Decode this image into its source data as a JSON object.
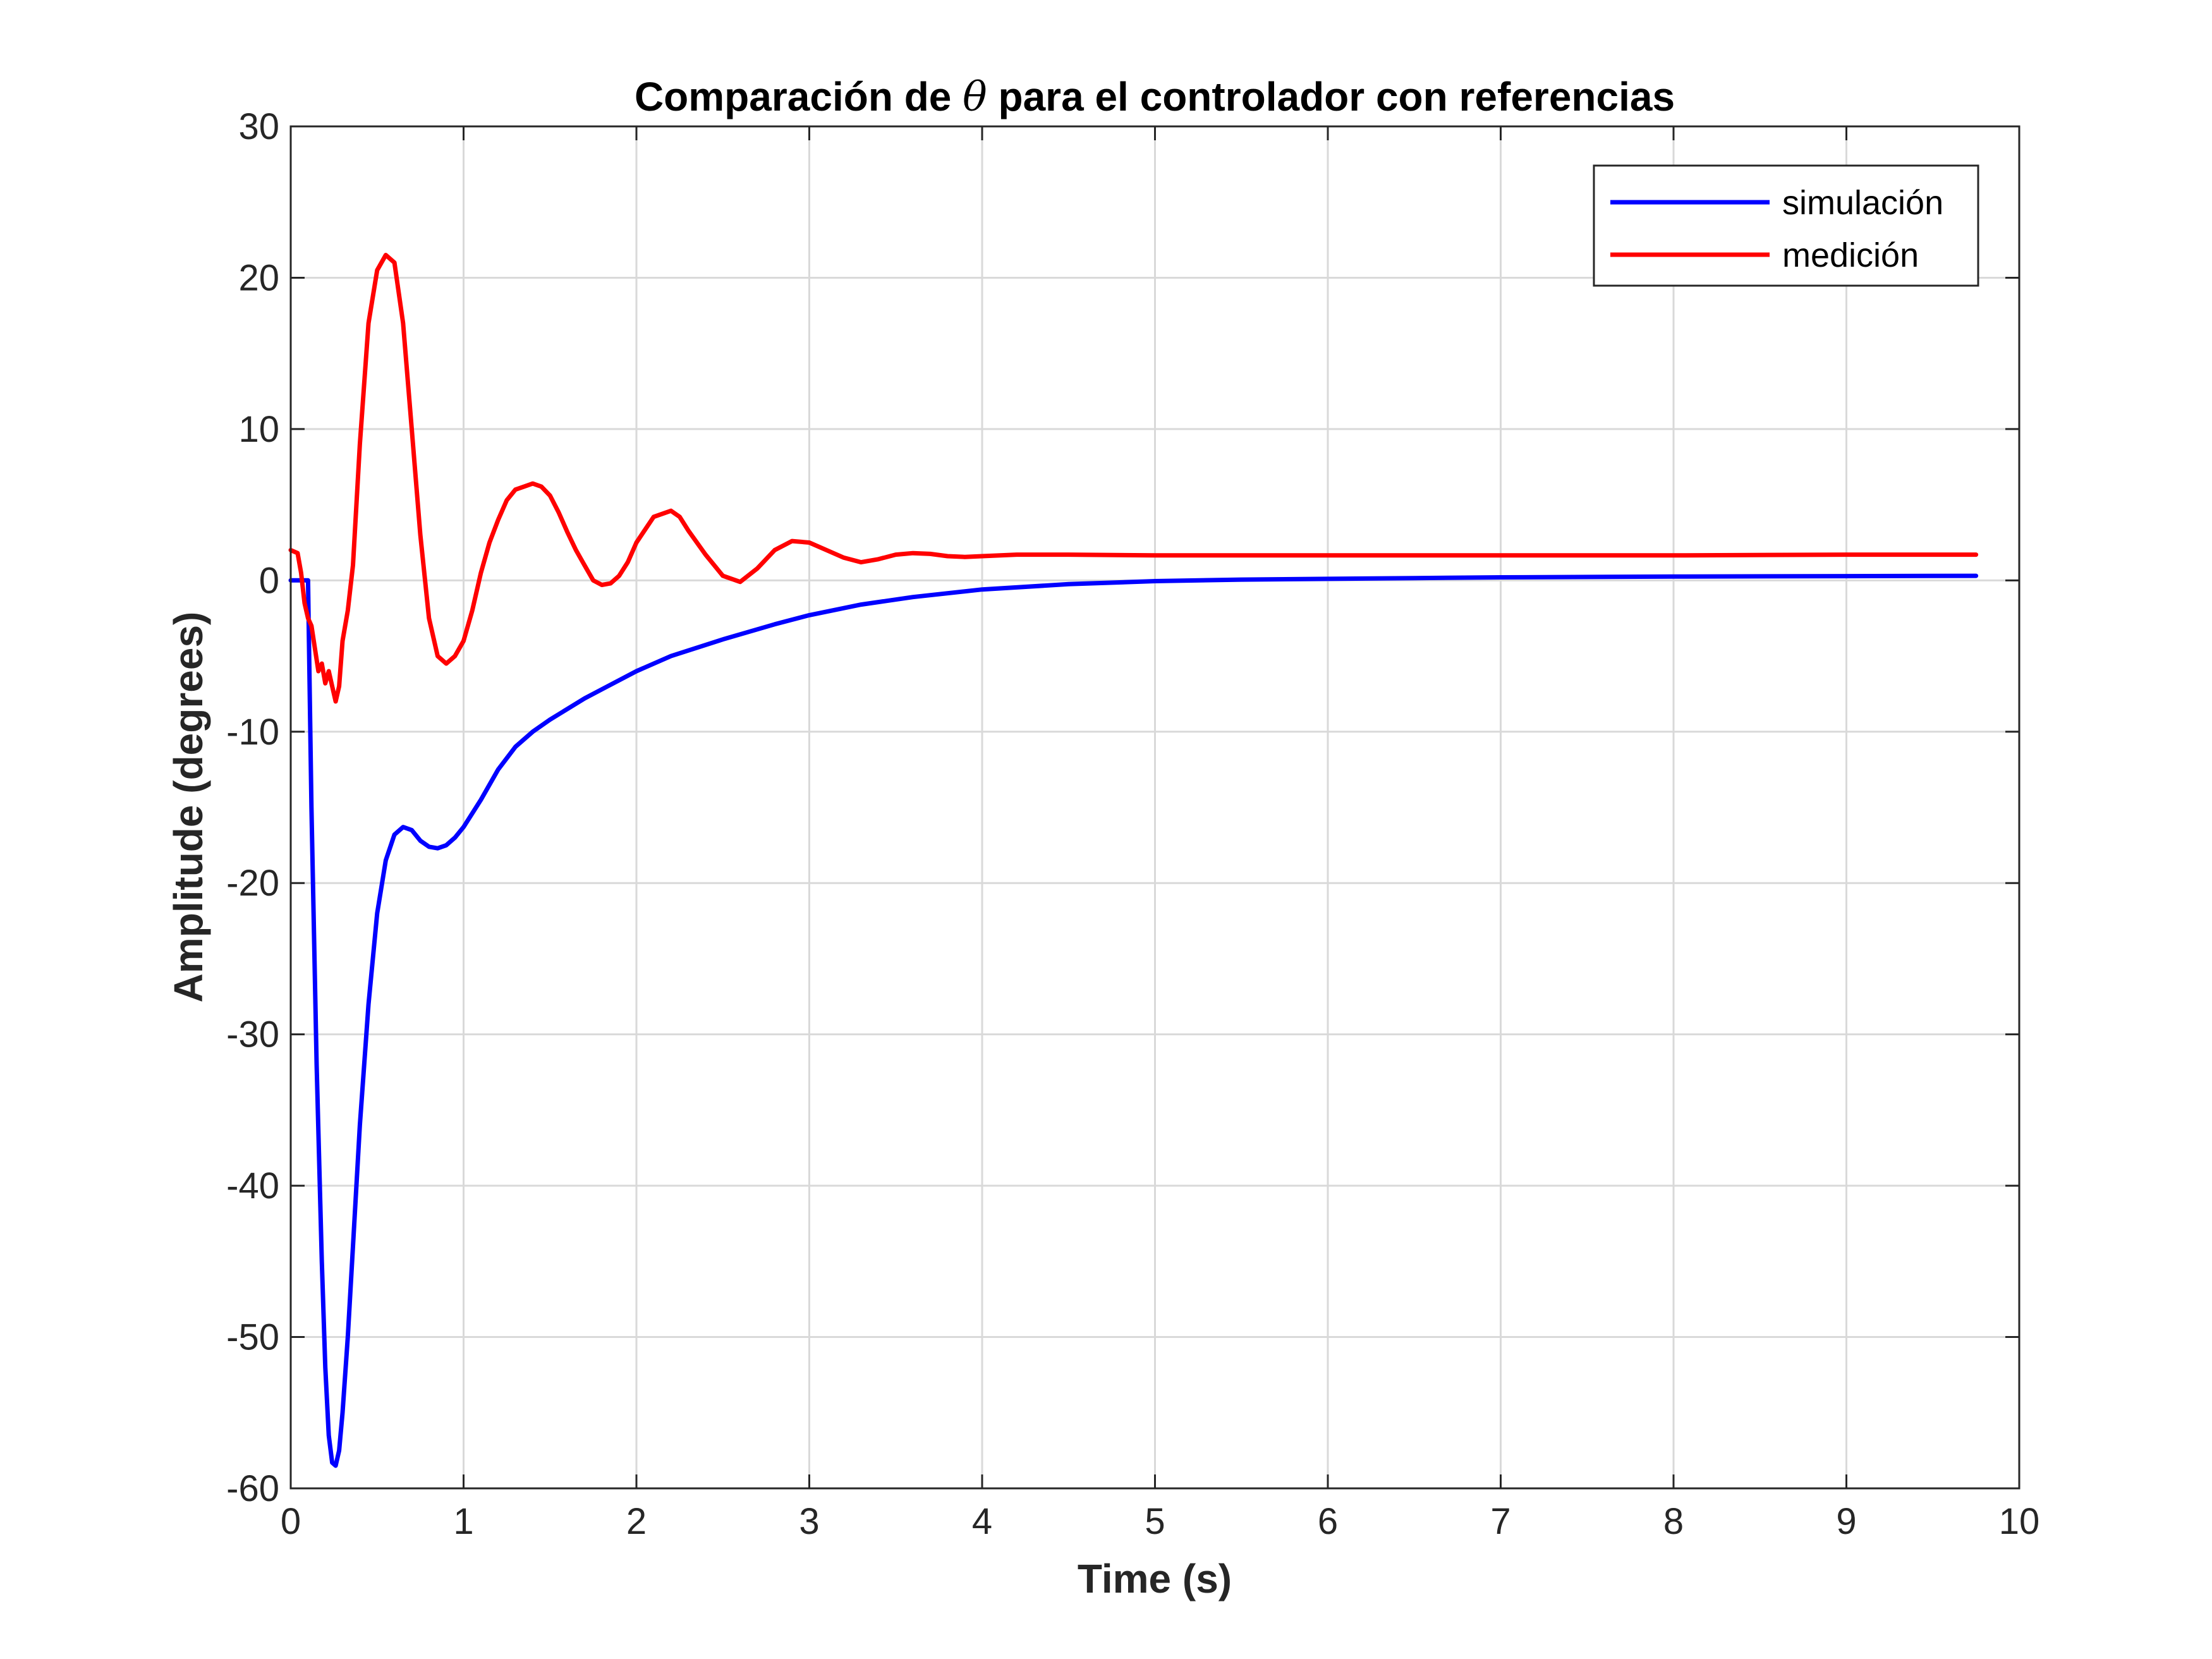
{
  "chart_data": {
    "type": "line",
    "title_parts": {
      "before": "Comparación de ",
      "symbol": "θ",
      "after": " para el controlador con referencias"
    },
    "xlabel": "Time (s)",
    "ylabel": "Amplitude (degrees)",
    "xlim": [
      0,
      10
    ],
    "ylim": [
      -60,
      30
    ],
    "xticks": [
      0,
      1,
      2,
      3,
      4,
      5,
      6,
      7,
      8,
      9,
      10
    ],
    "yticks": [
      -60,
      -50,
      -40,
      -30,
      -20,
      -10,
      0,
      10,
      20,
      30
    ],
    "grid": true,
    "legend_position": "top-right",
    "series": [
      {
        "name": "simulación",
        "color": "#0000ff",
        "x": [
          0,
          0.1,
          0.12,
          0.15,
          0.18,
          0.2,
          0.22,
          0.24,
          0.26,
          0.28,
          0.3,
          0.33,
          0.36,
          0.4,
          0.45,
          0.5,
          0.55,
          0.6,
          0.65,
          0.7,
          0.75,
          0.8,
          0.85,
          0.9,
          0.95,
          1.0,
          1.1,
          1.2,
          1.3,
          1.4,
          1.5,
          1.6,
          1.7,
          1.8,
          2.0,
          2.2,
          2.5,
          2.8,
          3.0,
          3.3,
          3.6,
          4.0,
          4.5,
          5.0,
          5.5,
          6.0,
          6.5,
          7.0,
          8.0,
          9.0,
          9.75
        ],
        "y": [
          0,
          0,
          -15,
          -32,
          -45,
          -52,
          -56.5,
          -58.3,
          -58.5,
          -57.5,
          -55,
          -50,
          -44,
          -36,
          -28,
          -22,
          -18.5,
          -16.8,
          -16.3,
          -16.5,
          -17.2,
          -17.6,
          -17.7,
          -17.5,
          -17,
          -16.3,
          -14.5,
          -12.5,
          -11,
          -10,
          -9.2,
          -8.5,
          -7.8,
          -7.2,
          -6,
          -5,
          -3.9,
          -2.9,
          -2.3,
          -1.6,
          -1.1,
          -0.6,
          -0.25,
          -0.05,
          0.05,
          0.1,
          0.15,
          0.2,
          0.25,
          0.28,
          0.3
        ]
      },
      {
        "name": "medición",
        "color": "#ff0000",
        "x": [
          0,
          0.04,
          0.06,
          0.08,
          0.1,
          0.12,
          0.14,
          0.16,
          0.18,
          0.2,
          0.22,
          0.24,
          0.26,
          0.28,
          0.3,
          0.33,
          0.36,
          0.4,
          0.45,
          0.5,
          0.55,
          0.6,
          0.65,
          0.7,
          0.75,
          0.8,
          0.85,
          0.9,
          0.95,
          1.0,
          1.05,
          1.1,
          1.15,
          1.2,
          1.25,
          1.3,
          1.35,
          1.4,
          1.45,
          1.5,
          1.55,
          1.6,
          1.65,
          1.7,
          1.75,
          1.8,
          1.85,
          1.9,
          1.95,
          2.0,
          2.1,
          2.2,
          2.25,
          2.3,
          2.4,
          2.5,
          2.6,
          2.7,
          2.8,
          2.9,
          3.0,
          3.1,
          3.2,
          3.3,
          3.4,
          3.5,
          3.6,
          3.7,
          3.8,
          3.9,
          4.0,
          4.2,
          4.5,
          5.0,
          6.0,
          7.0,
          8.0,
          9.0,
          9.75
        ],
        "y": [
          2,
          1.8,
          0.5,
          -1.5,
          -2.5,
          -3,
          -4.5,
          -6,
          -5.5,
          -6.8,
          -6,
          -7,
          -8,
          -7,
          -4,
          -2,
          1,
          9,
          17,
          20.5,
          21.5,
          21,
          17,
          10,
          3,
          -2.5,
          -5,
          -5.5,
          -5,
          -4,
          -2,
          0.5,
          2.5,
          4,
          5.3,
          6,
          6.2,
          6.4,
          6.2,
          5.6,
          4.5,
          3.2,
          2,
          1,
          0,
          -0.3,
          -0.2,
          0.3,
          1.2,
          2.5,
          4.2,
          4.6,
          4.2,
          3.3,
          1.7,
          0.3,
          -0.1,
          0.8,
          2,
          2.6,
          2.5,
          2,
          1.5,
          1.2,
          1.4,
          1.7,
          1.8,
          1.75,
          1.6,
          1.55,
          1.6,
          1.7,
          1.7,
          1.65,
          1.65,
          1.65,
          1.65,
          1.7,
          1.7
        ]
      }
    ]
  }
}
